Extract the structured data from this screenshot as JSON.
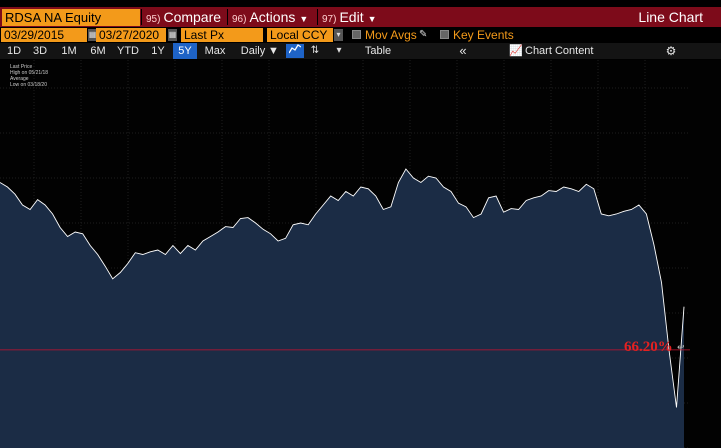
{
  "toolbar": {
    "security": "RDSA NA Equity",
    "compare": {
      "num": "95)",
      "label": "Compare"
    },
    "actions": {
      "num": "96)",
      "label": "Actions"
    },
    "edit": {
      "num": "97)",
      "label": "Edit"
    },
    "chart_type": "Line Chart"
  },
  "params": {
    "start_date": "03/29/2015",
    "end_date": "03/27/2020",
    "field": "Last Px",
    "currency": "Local CCY",
    "mov_avgs": "Mov Avgs",
    "key_events": "Key Events"
  },
  "periods": {
    "items": [
      "1D",
      "3D",
      "1M",
      "6M",
      "YTD",
      "1Y",
      "5Y",
      "Max"
    ],
    "active": "5Y",
    "frequency": "Daily",
    "table": "Table",
    "chart_content": "Chart Content"
  },
  "legend": [
    "Last Price",
    "High on 05/21/18",
    "Average",
    "Low on 03/18/20"
  ],
  "annotation": {
    "text": "66.20%",
    "color": "#e32121"
  },
  "colors": {
    "accent": "#f39a1a",
    "header": "#7d0b1a",
    "area": "#1b2c45",
    "line": "#ffffff",
    "ref_line": "#c8102e",
    "active_tab": "#1e63c7"
  },
  "chart_data": {
    "type": "area",
    "series": [
      {
        "values": [
          29.5,
          29.0,
          28.2,
          27.0,
          26.5,
          27.6,
          27.0,
          26.0,
          24.5,
          23.5,
          24.0,
          23.8,
          22.5,
          21.5,
          20.2,
          18.8,
          19.5,
          20.5,
          21.7,
          21.5,
          21.8,
          22.0,
          21.5,
          22.5,
          21.6,
          22.5,
          22.0,
          23.0,
          23.5,
          24.0,
          24.6,
          24.5,
          25.5,
          25.6,
          25.0,
          24.3,
          23.8,
          23.0,
          23.3,
          24.8,
          25.0,
          24.8,
          26.0,
          27.0,
          28.0,
          27.5,
          28.5,
          28.0,
          29.0,
          28.8,
          28.0,
          26.5,
          26.8,
          29.5,
          31.0,
          30.0,
          29.5,
          30.2,
          30.0,
          29.0,
          28.5,
          27.2,
          26.8,
          25.6,
          26.0,
          27.8,
          28.0,
          26.2,
          26.6,
          26.5,
          27.5,
          27.8,
          28.0,
          28.6,
          28.5,
          29.0,
          28.8,
          28.5,
          29.3,
          28.8,
          26.0,
          25.8,
          26.0,
          26.3,
          26.5,
          27.0,
          26.0,
          22.6,
          18.4,
          10.9,
          4.5,
          15.7
        ]
      }
    ],
    "ylim": [
      0,
      40
    ],
    "ref_line": 10.9
  }
}
